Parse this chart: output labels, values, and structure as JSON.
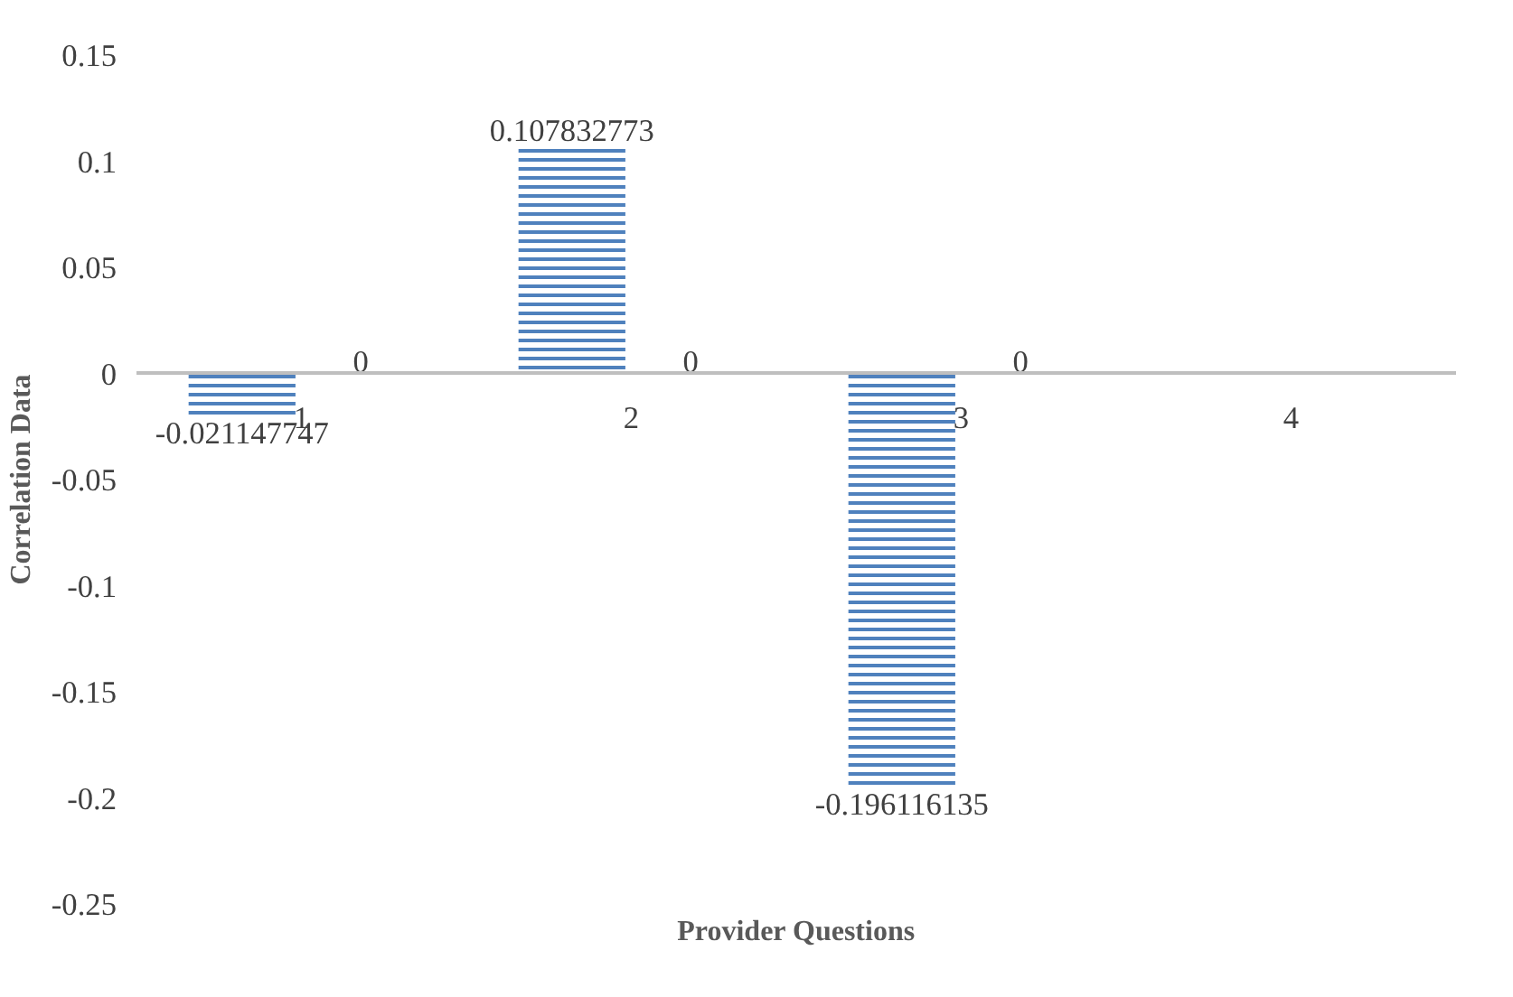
{
  "chart_data": {
    "type": "bar",
    "xlabel": "Provider Questions",
    "ylabel": "Correlation Data",
    "categories": [
      "1",
      "2",
      "3",
      "4"
    ],
    "series": [
      {
        "color": "#4f81bd",
        "values": [
          -0.021147747,
          0.107832773,
          -0.196116135,
          null
        ]
      },
      {
        "color": "#c0504d",
        "values": [
          0,
          0,
          0,
          null
        ]
      }
    ],
    "ylim": [
      -0.25,
      0.15
    ],
    "yticks": [
      {
        "value": 0.15,
        "label": "0.15"
      },
      {
        "value": 0.1,
        "label": "0.1"
      },
      {
        "value": 0.05,
        "label": "0.05"
      },
      {
        "value": 0,
        "label": "0"
      },
      {
        "value": -0.05,
        "label": "-0.05"
      },
      {
        "value": -0.1,
        "label": "-0.1"
      },
      {
        "value": -0.15,
        "label": "-0.15"
      },
      {
        "value": -0.2,
        "label": "-0.2"
      },
      {
        "value": -0.25,
        "label": "-0.25"
      }
    ],
    "data_labels": true,
    "grid": false
  }
}
